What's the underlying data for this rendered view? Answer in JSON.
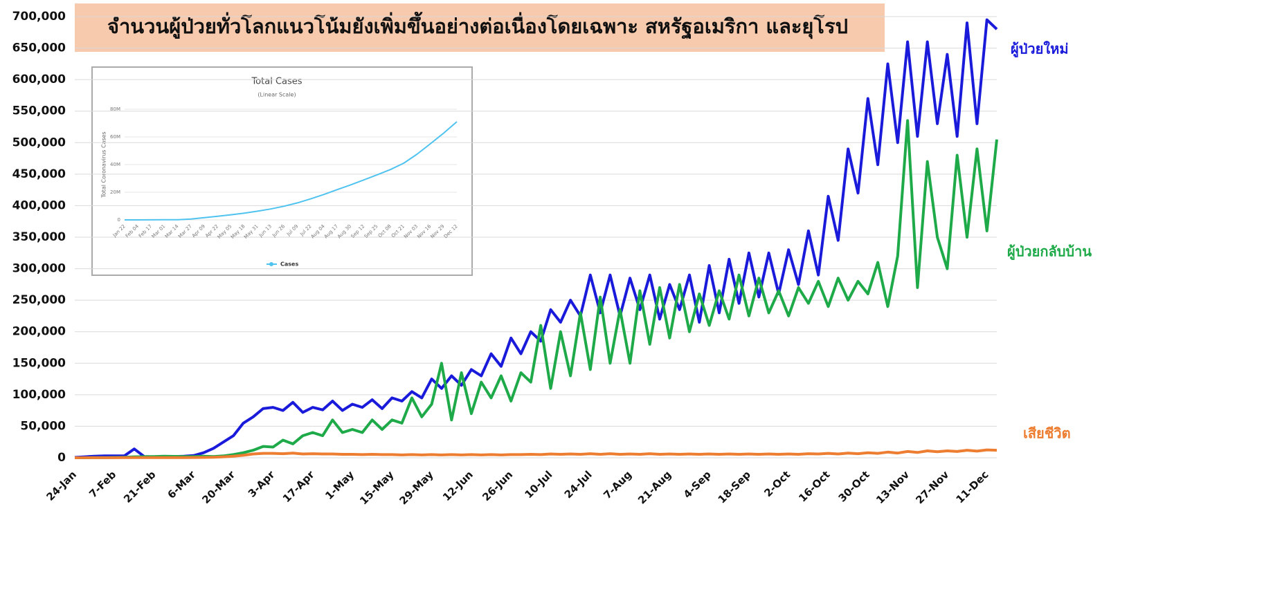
{
  "chart_data": [
    {
      "type": "line",
      "title": "จำนวนผู้ป่วยทั่วโลกแนวโน้มยังเพิ่มขึ้นอย่างต่อเนื่องโดยเฉพาะ สหรัฐอเมริกา และยุโรป",
      "categories": [
        "24-Jan",
        null,
        null,
        null,
        "7-Feb",
        null,
        null,
        null,
        "21-Feb",
        null,
        null,
        null,
        "6-Mar",
        null,
        null,
        null,
        "20-Mar",
        null,
        null,
        null,
        "3-Apr",
        null,
        null,
        null,
        "17-Apr",
        null,
        null,
        null,
        "1-May",
        null,
        null,
        null,
        "15-May",
        null,
        null,
        null,
        "29-May",
        null,
        null,
        null,
        "12-Jun",
        null,
        null,
        null,
        "26-Jun",
        null,
        null,
        null,
        "10-Jul",
        null,
        null,
        null,
        "24-Jul",
        null,
        null,
        null,
        "7-Aug",
        null,
        null,
        null,
        "21-Aug",
        null,
        null,
        null,
        "4-Sep",
        null,
        null,
        null,
        "18-Sep",
        null,
        null,
        null,
        "2-Oct",
        null,
        null,
        null,
        "16-Oct",
        null,
        null,
        null,
        "30-Oct",
        null,
        null,
        null,
        "13-Nov",
        null,
        null,
        null,
        "27-Nov",
        null,
        null,
        null,
        "11-Dec",
        null
      ],
      "series": [
        {
          "name": "ผู้ป่วยใหม่",
          "color": "#1a1adb",
          "values": [
            500,
            1500,
            2500,
            3000,
            3000,
            3000,
            14000,
            2000,
            1500,
            1500,
            2000,
            2500,
            3500,
            8000,
            15000,
            25000,
            35000,
            55000,
            65000,
            78000,
            80000,
            75000,
            88000,
            72000,
            80000,
            76000,
            90000,
            75000,
            85000,
            80000,
            92000,
            78000,
            95000,
            90000,
            105000,
            95000,
            125000,
            110000,
            130000,
            115000,
            140000,
            130000,
            165000,
            145000,
            190000,
            165000,
            200000,
            185000,
            235000,
            215000,
            250000,
            225000,
            290000,
            230000,
            290000,
            225000,
            285000,
            235000,
            290000,
            220000,
            275000,
            235000,
            290000,
            215000,
            305000,
            230000,
            315000,
            245000,
            325000,
            255000,
            325000,
            260000,
            330000,
            275000,
            360000,
            290000,
            415000,
            345000,
            490000,
            420000,
            570000,
            465000,
            625000,
            500000,
            660000,
            510000,
            660000,
            530000,
            640000,
            510000,
            690000,
            530000,
            695000,
            680000
          ]
        },
        {
          "name": "ผู้ป่วยกลับบ้าน",
          "color": "#1faa4a",
          "values": [
            0,
            0,
            200,
            300,
            500,
            800,
            1500,
            1800,
            2000,
            2500,
            2200,
            2000,
            2000,
            2500,
            2000,
            3000,
            5000,
            8000,
            12000,
            18000,
            17000,
            28000,
            22000,
            35000,
            40000,
            35000,
            60000,
            40000,
            45000,
            40000,
            60000,
            45000,
            60000,
            55000,
            95000,
            65000,
            85000,
            150000,
            60000,
            135000,
            70000,
            120000,
            95000,
            130000,
            90000,
            135000,
            120000,
            210000,
            110000,
            200000,
            130000,
            230000,
            140000,
            255000,
            150000,
            235000,
            150000,
            265000,
            180000,
            270000,
            190000,
            275000,
            200000,
            260000,
            210000,
            265000,
            220000,
            290000,
            225000,
            285000,
            230000,
            265000,
            225000,
            270000,
            245000,
            280000,
            240000,
            285000,
            250000,
            280000,
            260000,
            310000,
            240000,
            320000,
            535000,
            270000,
            470000,
            350000,
            300000,
            480000,
            350000,
            490000,
            360000,
            505000
          ]
        },
        {
          "name": "เสียชีวิต",
          "color": "#ed7d31",
          "values": [
            50,
            100,
            100,
            100,
            150,
            200,
            300,
            200,
            200,
            200,
            300,
            300,
            400,
            600,
            900,
            1500,
            2500,
            4000,
            6000,
            7000,
            7000,
            6500,
            7500,
            6000,
            6500,
            6000,
            6000,
            5500,
            5500,
            5000,
            5500,
            5000,
            5000,
            4500,
            5000,
            4500,
            5000,
            4500,
            5000,
            4500,
            5000,
            4500,
            5000,
            4500,
            5000,
            5000,
            5500,
            5000,
            6000,
            5500,
            6000,
            5500,
            6500,
            5500,
            6500,
            5500,
            6000,
            5500,
            6500,
            5500,
            6000,
            5500,
            6000,
            5500,
            6000,
            5500,
            6000,
            5500,
            6000,
            5500,
            6000,
            5500,
            6000,
            5500,
            6500,
            6000,
            7000,
            6000,
            7500,
            6500,
            8000,
            7000,
            9000,
            7500,
            10000,
            8500,
            11000,
            9500,
            11000,
            10000,
            12000,
            10500,
            12500,
            12000
          ]
        }
      ],
      "ylim": [
        0,
        700000
      ],
      "yticks": [
        0,
        {
          "value": 50000,
          "label": "50,000"
        },
        {
          "value": 100000,
          "label": "100,000"
        },
        {
          "value": 150000,
          "label": "150,000"
        },
        {
          "value": 200000,
          "label": "200,000"
        },
        {
          "value": 250000,
          "label": "250,000"
        },
        {
          "value": 300000,
          "label": "300,000"
        },
        {
          "value": 350000,
          "label": "350,000"
        },
        {
          "value": 400000,
          "label": "400,000"
        },
        {
          "value": 450000,
          "label": "450,000"
        },
        {
          "value": 500000,
          "label": "500,000"
        },
        {
          "value": 550000,
          "label": "550,000"
        },
        {
          "value": 600000,
          "label": "600,000"
        },
        {
          "value": 650000,
          "label": "650,000"
        },
        {
          "value": 700000,
          "label": "700,000"
        }
      ],
      "grid": true
    },
    {
      "type": "line",
      "title": "Total Cases",
      "subtitle": "(Linear Scale)",
      "y_label": "Total Coronavirus Cases",
      "categories": [
        "Jan 22",
        "Feb 04",
        "Feb 17",
        "Mar 01",
        "Mar 14",
        "Mar 27",
        "Apr 09",
        "Apr 22",
        "May 05",
        "May 18",
        "May 31",
        "Jun 13",
        "Jun 26",
        "Jul 09",
        "Jul 22",
        "Aug 04",
        "Aug 17",
        "Aug 30",
        "Sep 12",
        "Sep 25",
        "Oct 08",
        "Oct 21",
        "Nov 03",
        "Nov 16",
        "Nov 29",
        "Dec 12"
      ],
      "series": [
        {
          "name": "Cases",
          "color": "#4fc3f0",
          "values": [
            500,
            20000,
            70000,
            90000,
            150000,
            600000,
            1600000,
            2600000,
            3700000,
            4900000,
            6300000,
            7900000,
            9900000,
            12300000,
            15200000,
            18400000,
            21900000,
            25300000,
            28900000,
            32600000,
            36400000,
            41000000,
            47500000,
            55000000,
            62700000,
            71000000
          ]
        }
      ],
      "ylim": [
        0,
        80000000
      ],
      "yticks": [
        0,
        {
          "value": 20000000,
          "label": "20M"
        },
        {
          "value": 40000000,
          "label": "40M"
        },
        {
          "value": 60000000,
          "label": "60M"
        },
        {
          "value": 80000000,
          "label": "80M"
        }
      ],
      "grid": true
    }
  ]
}
